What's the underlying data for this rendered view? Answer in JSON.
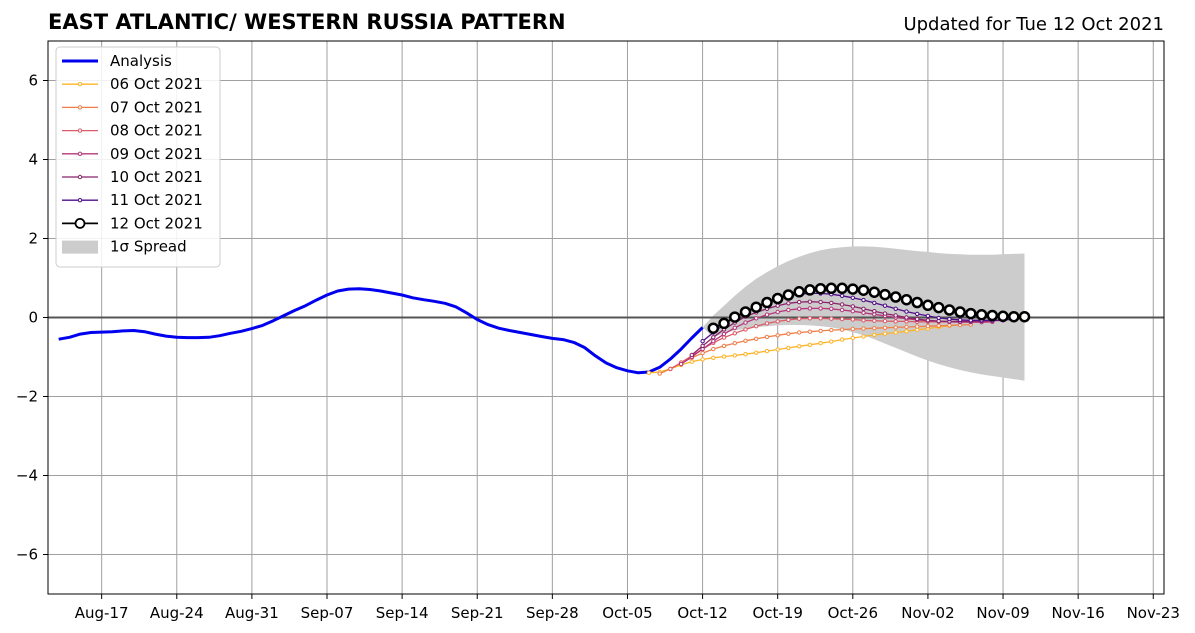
{
  "header": {
    "title": "EAST ATLANTIC/ WESTERN RUSSIA PATTERN",
    "updated": "Updated for Tue 12 Oct 2021"
  },
  "chart_data": {
    "type": "line",
    "x_unit": "date",
    "xlim": [
      "2021-08-12",
      "2021-11-24"
    ],
    "ylim": [
      -7,
      7
    ],
    "grid": true,
    "legend_position": "top-left",
    "x_ticks": [
      {
        "label": "Aug-17",
        "date": "2021-08-17"
      },
      {
        "label": "Aug-24",
        "date": "2021-08-24"
      },
      {
        "label": "Aug-31",
        "date": "2021-08-31"
      },
      {
        "label": "Sep-07",
        "date": "2021-09-07"
      },
      {
        "label": "Sep-14",
        "date": "2021-09-14"
      },
      {
        "label": "Sep-21",
        "date": "2021-09-21"
      },
      {
        "label": "Sep-28",
        "date": "2021-09-28"
      },
      {
        "label": "Oct-05",
        "date": "2021-10-05"
      },
      {
        "label": "Oct-12",
        "date": "2021-10-12"
      },
      {
        "label": "Oct-19",
        "date": "2021-10-19"
      },
      {
        "label": "Oct-26",
        "date": "2021-10-26"
      },
      {
        "label": "Nov-02",
        "date": "2021-11-02"
      },
      {
        "label": "Nov-09",
        "date": "2021-11-09"
      },
      {
        "label": "Nov-16",
        "date": "2021-11-16"
      },
      {
        "label": "Nov-23",
        "date": "2021-11-23"
      }
    ],
    "y_ticks": [
      {
        "label": "6",
        "value": 6
      },
      {
        "label": "4",
        "value": 4
      },
      {
        "label": "2",
        "value": 2
      },
      {
        "label": "0",
        "value": 0
      },
      {
        "label": "−2",
        "value": -2
      },
      {
        "label": "−4",
        "value": -4
      },
      {
        "label": "−6",
        "value": -6
      }
    ],
    "analysis": {
      "name": "Analysis",
      "color": "#0000ee",
      "points": [
        [
          "2021-08-13",
          -0.55
        ],
        [
          "2021-08-14",
          -0.5
        ],
        [
          "2021-08-15",
          -0.42
        ],
        [
          "2021-08-16",
          -0.38
        ],
        [
          "2021-08-17",
          -0.37
        ],
        [
          "2021-08-18",
          -0.36
        ],
        [
          "2021-08-19",
          -0.34
        ],
        [
          "2021-08-20",
          -0.33
        ],
        [
          "2021-08-21",
          -0.36
        ],
        [
          "2021-08-22",
          -0.42
        ],
        [
          "2021-08-23",
          -0.47
        ],
        [
          "2021-08-24",
          -0.5
        ],
        [
          "2021-08-25",
          -0.51
        ],
        [
          "2021-08-26",
          -0.51
        ],
        [
          "2021-08-27",
          -0.5
        ],
        [
          "2021-08-28",
          -0.46
        ],
        [
          "2021-08-29",
          -0.4
        ],
        [
          "2021-08-30",
          -0.35
        ],
        [
          "2021-08-31",
          -0.28
        ],
        [
          "2021-09-01",
          -0.2
        ],
        [
          "2021-09-02",
          -0.08
        ],
        [
          "2021-09-03",
          0.05
        ],
        [
          "2021-09-04",
          0.18
        ],
        [
          "2021-09-05",
          0.3
        ],
        [
          "2021-09-06",
          0.44
        ],
        [
          "2021-09-07",
          0.57
        ],
        [
          "2021-09-08",
          0.67
        ],
        [
          "2021-09-09",
          0.72
        ],
        [
          "2021-09-10",
          0.73
        ],
        [
          "2021-09-11",
          0.71
        ],
        [
          "2021-09-12",
          0.67
        ],
        [
          "2021-09-13",
          0.62
        ],
        [
          "2021-09-14",
          0.57
        ],
        [
          "2021-09-15",
          0.5
        ],
        [
          "2021-09-16",
          0.45
        ],
        [
          "2021-09-17",
          0.41
        ],
        [
          "2021-09-18",
          0.36
        ],
        [
          "2021-09-19",
          0.27
        ],
        [
          "2021-09-20",
          0.12
        ],
        [
          "2021-09-21",
          -0.05
        ],
        [
          "2021-09-22",
          -0.18
        ],
        [
          "2021-09-23",
          -0.27
        ],
        [
          "2021-09-24",
          -0.33
        ],
        [
          "2021-09-25",
          -0.38
        ],
        [
          "2021-09-26",
          -0.43
        ],
        [
          "2021-09-27",
          -0.48
        ],
        [
          "2021-09-28",
          -0.53
        ],
        [
          "2021-09-29",
          -0.56
        ],
        [
          "2021-09-30",
          -0.63
        ],
        [
          "2021-10-01",
          -0.76
        ],
        [
          "2021-10-02",
          -0.97
        ],
        [
          "2021-10-03",
          -1.15
        ],
        [
          "2021-10-04",
          -1.27
        ],
        [
          "2021-10-05",
          -1.35
        ],
        [
          "2021-10-06",
          -1.4
        ],
        [
          "2021-10-07",
          -1.38
        ],
        [
          "2021-10-08",
          -1.26
        ],
        [
          "2021-10-09",
          -1.05
        ],
        [
          "2021-10-10",
          -0.8
        ],
        [
          "2021-10-11",
          -0.52
        ],
        [
          "2021-10-12",
          -0.25
        ]
      ]
    },
    "forecasts": [
      {
        "name": "06 Oct 2021",
        "color": "#fcb42a",
        "start": "2021-10-07",
        "step_days": 1,
        "values": [
          -1.4,
          -1.38,
          -1.3,
          -1.2,
          -1.12,
          -1.06,
          -1.02,
          -0.99,
          -0.96,
          -0.93,
          -0.89,
          -0.85,
          -0.81,
          -0.77,
          -0.73,
          -0.69,
          -0.65,
          -0.61,
          -0.56,
          -0.52,
          -0.48,
          -0.44,
          -0.41,
          -0.38,
          -0.35,
          -0.31,
          -0.28,
          -0.24,
          -0.21,
          -0.18
        ]
      },
      {
        "name": "07 Oct 2021",
        "color": "#f07f4a",
        "start": "2021-10-08",
        "step_days": 1,
        "values": [
          -1.42,
          -1.3,
          -1.15,
          -1.02,
          -0.9,
          -0.8,
          -0.72,
          -0.65,
          -0.59,
          -0.54,
          -0.49,
          -0.45,
          -0.41,
          -0.38,
          -0.36,
          -0.34,
          -0.32,
          -0.31,
          -0.29,
          -0.28,
          -0.27,
          -0.26,
          -0.25,
          -0.24,
          -0.23,
          -0.22,
          -0.21,
          -0.2,
          -0.19,
          -0.18
        ]
      },
      {
        "name": "08 Oct 2021",
        "color": "#db5c68",
        "start": "2021-10-09",
        "step_days": 1,
        "values": [
          -1.3,
          -1.14,
          -0.97,
          -0.8,
          -0.64,
          -0.51,
          -0.4,
          -0.3,
          -0.22,
          -0.15,
          -0.1,
          -0.06,
          -0.03,
          -0.02,
          -0.02,
          -0.03,
          -0.04,
          -0.05,
          -0.07,
          -0.08,
          -0.09,
          -0.1,
          -0.1,
          -0.11,
          -0.11,
          -0.11,
          -0.11,
          -0.1,
          -0.1,
          -0.09
        ]
      },
      {
        "name": "09 Oct 2021",
        "color": "#b5367a",
        "start": "2021-10-10",
        "step_days": 1,
        "values": [
          -1.18,
          -1.0,
          -0.8,
          -0.6,
          -0.42,
          -0.26,
          -0.13,
          -0.02,
          0.07,
          0.14,
          0.19,
          0.22,
          0.23,
          0.23,
          0.22,
          0.19,
          0.16,
          0.12,
          0.08,
          0.04,
          0.0,
          -0.03,
          -0.06,
          -0.08,
          -0.1,
          -0.11,
          -0.12,
          -0.12,
          -0.12,
          -0.11
        ]
      },
      {
        "name": "10 Oct 2021",
        "color": "#8a226a",
        "start": "2021-10-11",
        "step_days": 1,
        "values": [
          -0.95,
          -0.72,
          -0.5,
          -0.3,
          -0.13,
          0.02,
          0.13,
          0.22,
          0.3,
          0.36,
          0.39,
          0.4,
          0.39,
          0.37,
          0.33,
          0.28,
          0.22,
          0.16,
          0.1,
          0.05,
          0.0,
          -0.04,
          -0.07,
          -0.09,
          -0.1,
          -0.1,
          -0.1,
          -0.09,
          -0.08,
          -0.07
        ]
      },
      {
        "name": "11 Oct 2021",
        "color": "#4f0d88",
        "start": "2021-10-12",
        "step_days": 1,
        "values": [
          -0.6,
          -0.38,
          -0.18,
          0.0,
          0.15,
          0.28,
          0.39,
          0.48,
          0.55,
          0.59,
          0.61,
          0.61,
          0.59,
          0.55,
          0.5,
          0.44,
          0.37,
          0.3,
          0.22,
          0.15,
          0.09,
          0.04,
          -0.01,
          -0.04,
          -0.06,
          -0.07,
          -0.07,
          -0.07,
          -0.06,
          -0.05
        ]
      },
      {
        "name": "12 Oct 2021",
        "color": "#000000",
        "start": "2021-10-13",
        "step_days": 1,
        "values": [
          -0.27,
          -0.15,
          0.01,
          0.14,
          0.26,
          0.38,
          0.48,
          0.57,
          0.65,
          0.7,
          0.73,
          0.74,
          0.74,
          0.72,
          0.69,
          0.64,
          0.58,
          0.52,
          0.45,
          0.38,
          0.31,
          0.25,
          0.19,
          0.14,
          0.1,
          0.07,
          0.05,
          0.03,
          0.02,
          0.02
        ]
      }
    ],
    "spread": {
      "name": "1σ Spread",
      "color": "#cccccc",
      "start": "2021-10-12",
      "step_days": 1,
      "upper": [
        -0.25,
        0.05,
        0.3,
        0.55,
        0.78,
        0.98,
        1.15,
        1.3,
        1.43,
        1.54,
        1.63,
        1.7,
        1.75,
        1.78,
        1.8,
        1.8,
        1.79,
        1.77,
        1.74,
        1.71,
        1.68,
        1.66,
        1.63,
        1.61,
        1.6,
        1.59,
        1.59,
        1.59,
        1.6,
        1.61,
        1.62
      ],
      "lower": [
        -0.25,
        -0.5,
        -0.4,
        -0.33,
        -0.28,
        -0.25,
        -0.22,
        -0.2,
        -0.19,
        -0.19,
        -0.2,
        -0.22,
        -0.25,
        -0.3,
        -0.37,
        -0.45,
        -0.55,
        -0.66,
        -0.77,
        -0.88,
        -0.99,
        -1.09,
        -1.18,
        -1.26,
        -1.33,
        -1.39,
        -1.44,
        -1.48,
        -1.52,
        -1.56,
        -1.6
      ]
    }
  }
}
